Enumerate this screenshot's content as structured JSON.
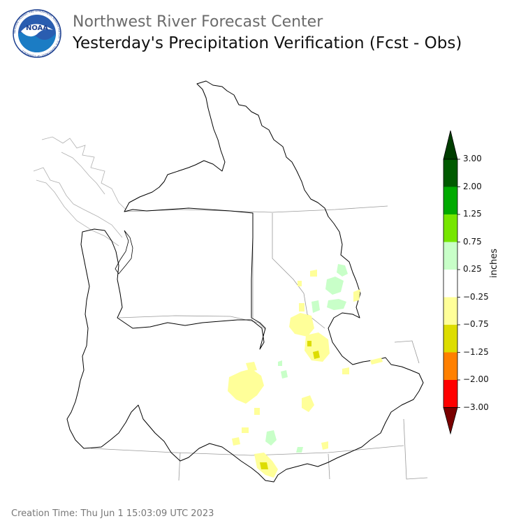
{
  "header": {
    "org_title": "Northwest River Forecast Center",
    "main_title": "Yesterday's Precipitation Verification (Fcst - Obs)"
  },
  "logo": {
    "center_text": "NOAA",
    "ring_text": "NATIONAL OCEANIC AND ATMOSPHERIC ADMINISTRATION · U.S. DEPARTMENT OF COMMERCE",
    "colors": {
      "ring": "#ffffff",
      "outer": "#1c3f8f",
      "sky": "#2a5db0",
      "water": "#1b7cc4"
    }
  },
  "colorbar": {
    "unit_label": "inches",
    "tick_labels": [
      "3.00",
      "2.00",
      "1.25",
      "0.75",
      "0.25",
      "−0.25",
      "−0.75",
      "−1.25",
      "−2.00",
      "−3.00"
    ],
    "bins": [
      {
        "range": "> 3.00",
        "color": "#003d00"
      },
      {
        "range": "2.00 to 3.00",
        "color": "#005a00"
      },
      {
        "range": "1.25 to 2.00",
        "color": "#00aa00"
      },
      {
        "range": "0.75 to 1.25",
        "color": "#76e600"
      },
      {
        "range": "0.25 to 0.75",
        "color": "#c8ffc8"
      },
      {
        "range": "-0.25 to 0.25",
        "color": "#ffffff"
      },
      {
        "range": "-0.75 to -0.25",
        "color": "#ffff99"
      },
      {
        "range": "-1.25 to -0.75",
        "color": "#dddd00"
      },
      {
        "range": "-2.00 to -1.25",
        "color": "#ff8000"
      },
      {
        "range": "-3.00 to -2.00",
        "color": "#ff0000"
      },
      {
        "range": "< -3.00",
        "color": "#7a0000"
      }
    ]
  },
  "map": {
    "basin_outline_color": "#000000",
    "state_border_color": "#999999",
    "coast_color": "#b0b0b0"
  },
  "footer": {
    "creation_time": "Creation Time: Thu Jun 1 15:03:09 UTC 2023"
  }
}
